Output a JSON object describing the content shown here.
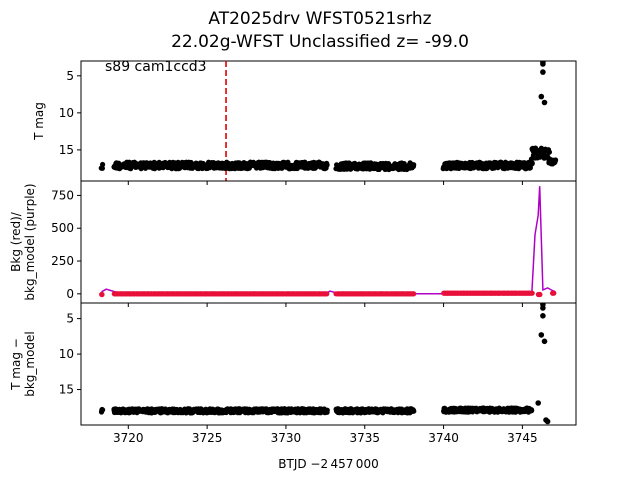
{
  "title": {
    "line1": "AT2025drv  WFST0521srhz",
    "line2": "22.02g-WFST Unclassified z= -99.0"
  },
  "chart_data": [
    {
      "type": "scatter",
      "panel": "top",
      "ylabel": "T mag",
      "annotation": "s89 cam1ccd3",
      "marker_line": {
        "x": 3726.2,
        "color": "#e00000",
        "style": "dashed"
      },
      "ylim": [
        19.2,
        3.0
      ],
      "yinverted": true,
      "yticks": [
        5,
        10,
        15
      ],
      "xlim": [
        3717.0,
        3748.4
      ],
      "series": [
        {
          "color": "#000000",
          "segments": [
            {
              "x0": 3718.3,
              "x1": 3718.35,
              "y": 17.3,
              "jitter": 1.0
            },
            {
              "x0": 3719.1,
              "x1": 3732.6,
              "y": 17.1,
              "jitter": 0.9
            },
            {
              "x0": 3733.2,
              "x1": 3738.1,
              "y": 17.2,
              "jitter": 0.9
            },
            {
              "x0": 3740.0,
              "x1": 3745.6,
              "y": 17.1,
              "jitter": 0.9
            },
            {
              "x0": 3745.6,
              "x1": 3746.7,
              "y": 15.5,
              "jitter": 1.5
            },
            {
              "x0": 3746.7,
              "x1": 3747.1,
              "y": 16.6,
              "jitter": 0.6
            }
          ]
        },
        {
          "color": "#000000",
          "points": [
            {
              "x": 3746.3,
              "y": 3.0
            },
            {
              "x": 3746.3,
              "y": 3.4
            },
            {
              "x": 3746.3,
              "y": 4.5
            },
            {
              "x": 3746.2,
              "y": 7.8
            },
            {
              "x": 3746.4,
              "y": 8.6
            }
          ]
        }
      ]
    },
    {
      "type": "line",
      "panel": "middle",
      "ylabel": "Bkg (red)/\nbkg_model (purple)",
      "ylim": [
        -70,
        860
      ],
      "yticks": [
        0,
        250,
        500,
        750
      ],
      "xlim": [
        3717.0,
        3748.4
      ],
      "series": [
        {
          "name": "bkg_model",
          "color": "#b000c8",
          "type": "line",
          "x": [
            3718.3,
            3718.6,
            3719.3,
            3720,
            3725,
            3732.5,
            3732.8,
            3733.3,
            3735,
            3738.1,
            3740.0,
            3741,
            3745.3,
            3745.6,
            3745.8,
            3746.0,
            3746.1,
            3746.3,
            3746.6,
            3746.9,
            3747.1
          ],
          "y": [
            15,
            35,
            10,
            5,
            5,
            5,
            20,
            5,
            5,
            0,
            0,
            10,
            10,
            15,
            450,
            600,
            820,
            30,
            45,
            25,
            15
          ]
        },
        {
          "name": "bkg",
          "color": "#e8103a",
          "type": "points",
          "segments": [
            {
              "x0": 3718.3,
              "x1": 3718.35,
              "y": -5
            },
            {
              "x0": 3719.1,
              "x1": 3732.6,
              "y": 0
            },
            {
              "x0": 3733.2,
              "x1": 3738.1,
              "y": 0
            },
            {
              "x0": 3740.0,
              "x1": 3745.6,
              "y": 5
            },
            {
              "x0": 3746.0,
              "x1": 3746.1,
              "y": -5
            },
            {
              "x0": 3746.9,
              "x1": 3747.0,
              "y": 5
            }
          ]
        }
      ]
    },
    {
      "type": "scatter",
      "panel": "bottom",
      "ylabel": "T mag −\nbkg_model",
      "ylim": [
        20.0,
        2.8
      ],
      "yinverted": true,
      "yticks": [
        5,
        10,
        15
      ],
      "xlim": [
        3717.0,
        3748.4
      ],
      "xticks": [
        3720,
        3725,
        3730,
        3735,
        3740,
        3745
      ],
      "xlabel": "BTJD −2 457 000",
      "series": [
        {
          "color": "#000000",
          "segments": [
            {
              "x0": 3718.3,
              "x1": 3718.35,
              "y": 18.0,
              "jitter": 0.4
            },
            {
              "x0": 3719.1,
              "x1": 3732.6,
              "y": 18.0,
              "jitter": 0.6
            },
            {
              "x0": 3733.2,
              "x1": 3738.1,
              "y": 18.0,
              "jitter": 0.6
            },
            {
              "x0": 3740.0,
              "x1": 3745.6,
              "y": 17.9,
              "jitter": 0.6
            }
          ]
        },
        {
          "color": "#000000",
          "points": [
            {
              "x": 3746.3,
              "y": 3.0
            },
            {
              "x": 3746.3,
              "y": 3.5
            },
            {
              "x": 3746.3,
              "y": 4.6
            },
            {
              "x": 3746.2,
              "y": 7.3
            },
            {
              "x": 3746.4,
              "y": 8.2
            },
            {
              "x": 3746.0,
              "y": 16.9
            },
            {
              "x": 3746.5,
              "y": 19.3
            },
            {
              "x": 3746.6,
              "y": 19.5
            }
          ]
        }
      ]
    }
  ]
}
